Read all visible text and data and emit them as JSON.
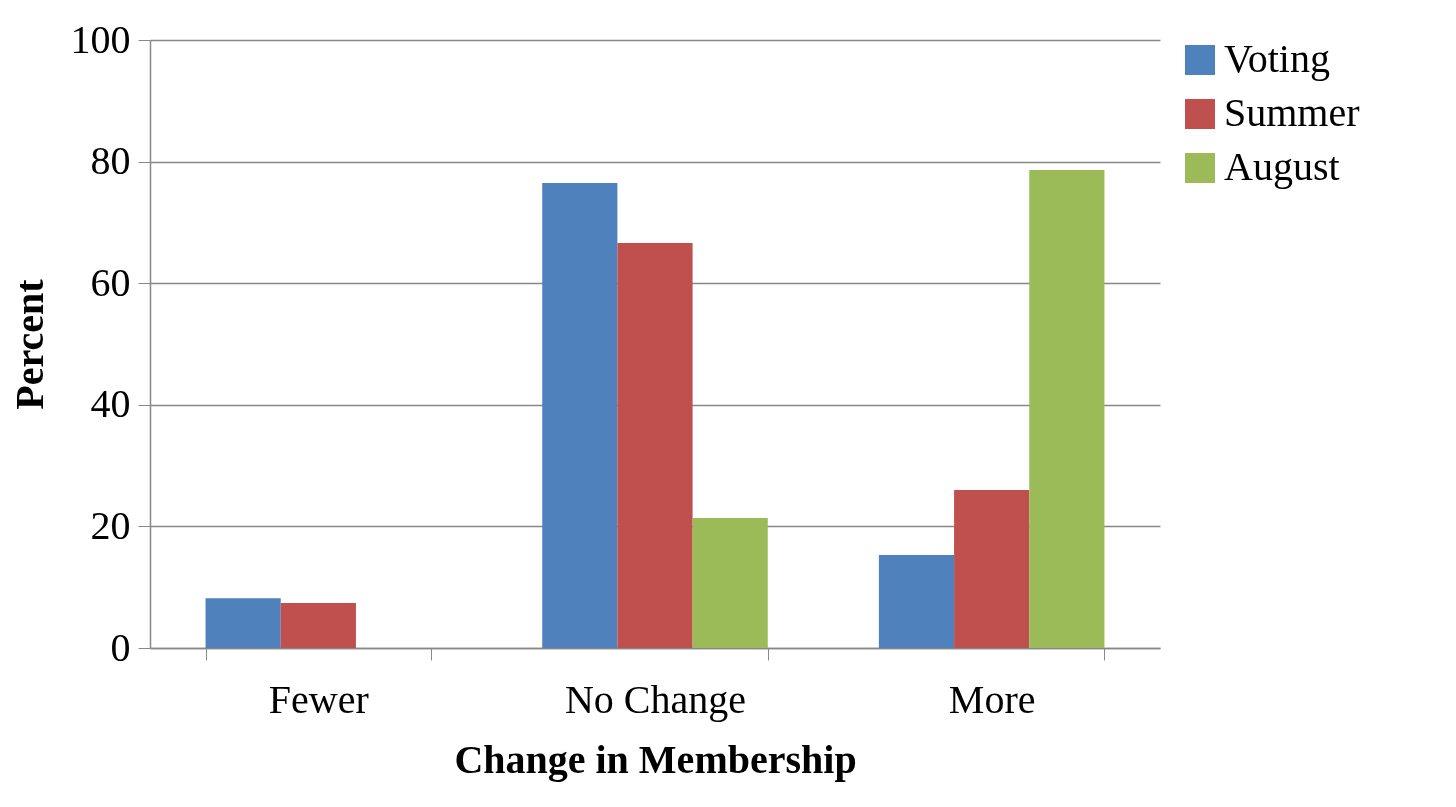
{
  "chart_data": {
    "type": "bar",
    "xlabel": "Change in Membership",
    "ylabel": "Percent",
    "categories": [
      "Fewer",
      "No Change",
      "More"
    ],
    "series": [
      {
        "name": "Voting",
        "color": "#4f81bd",
        "values": [
          8.2,
          76.5,
          15.3
        ]
      },
      {
        "name": "Summer",
        "color": "#c0504d",
        "values": [
          7.4,
          66.6,
          26.0
        ]
      },
      {
        "name": "August",
        "color": "#9bbb59",
        "values": [
          0,
          21.4,
          78.6
        ]
      }
    ],
    "ylim": [
      0,
      100
    ],
    "yticks": [
      0,
      20,
      40,
      60,
      80,
      100
    ],
    "grid": "y",
    "legend": "right"
  }
}
